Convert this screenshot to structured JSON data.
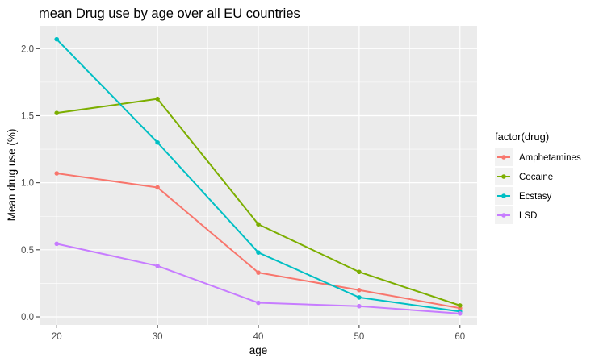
{
  "chart_data": {
    "type": "line",
    "title": "mean Drug use by age over all EU countries",
    "xlabel": "age",
    "ylabel": "Mean drug use (%)",
    "x": [
      20,
      30,
      40,
      50,
      60
    ],
    "x_ticks": [
      "20",
      "30",
      "40",
      "50",
      "60"
    ],
    "y_ticks": [
      "0.0",
      "0.5",
      "1.0",
      "1.5",
      "2.0"
    ],
    "xlim": [
      18.3,
      61.7
    ],
    "ylim": [
      -0.06,
      2.17
    ],
    "grid": true,
    "legend": {
      "title": "factor(drug)",
      "placement": "right"
    },
    "series": [
      {
        "name": "Amphetamines",
        "color": "#F8766D",
        "values": [
          1.07,
          0.965,
          0.33,
          0.2,
          0.065
        ]
      },
      {
        "name": "Cocaine",
        "color": "#7CAE00",
        "values": [
          1.52,
          1.625,
          0.69,
          0.335,
          0.085
        ]
      },
      {
        "name": "Ecstasy",
        "color": "#00BFC4",
        "values": [
          2.07,
          1.3,
          0.48,
          0.145,
          0.04
        ]
      },
      {
        "name": "LSD",
        "color": "#C77CFF",
        "values": [
          0.545,
          0.38,
          0.105,
          0.08,
          0.025
        ]
      }
    ]
  }
}
